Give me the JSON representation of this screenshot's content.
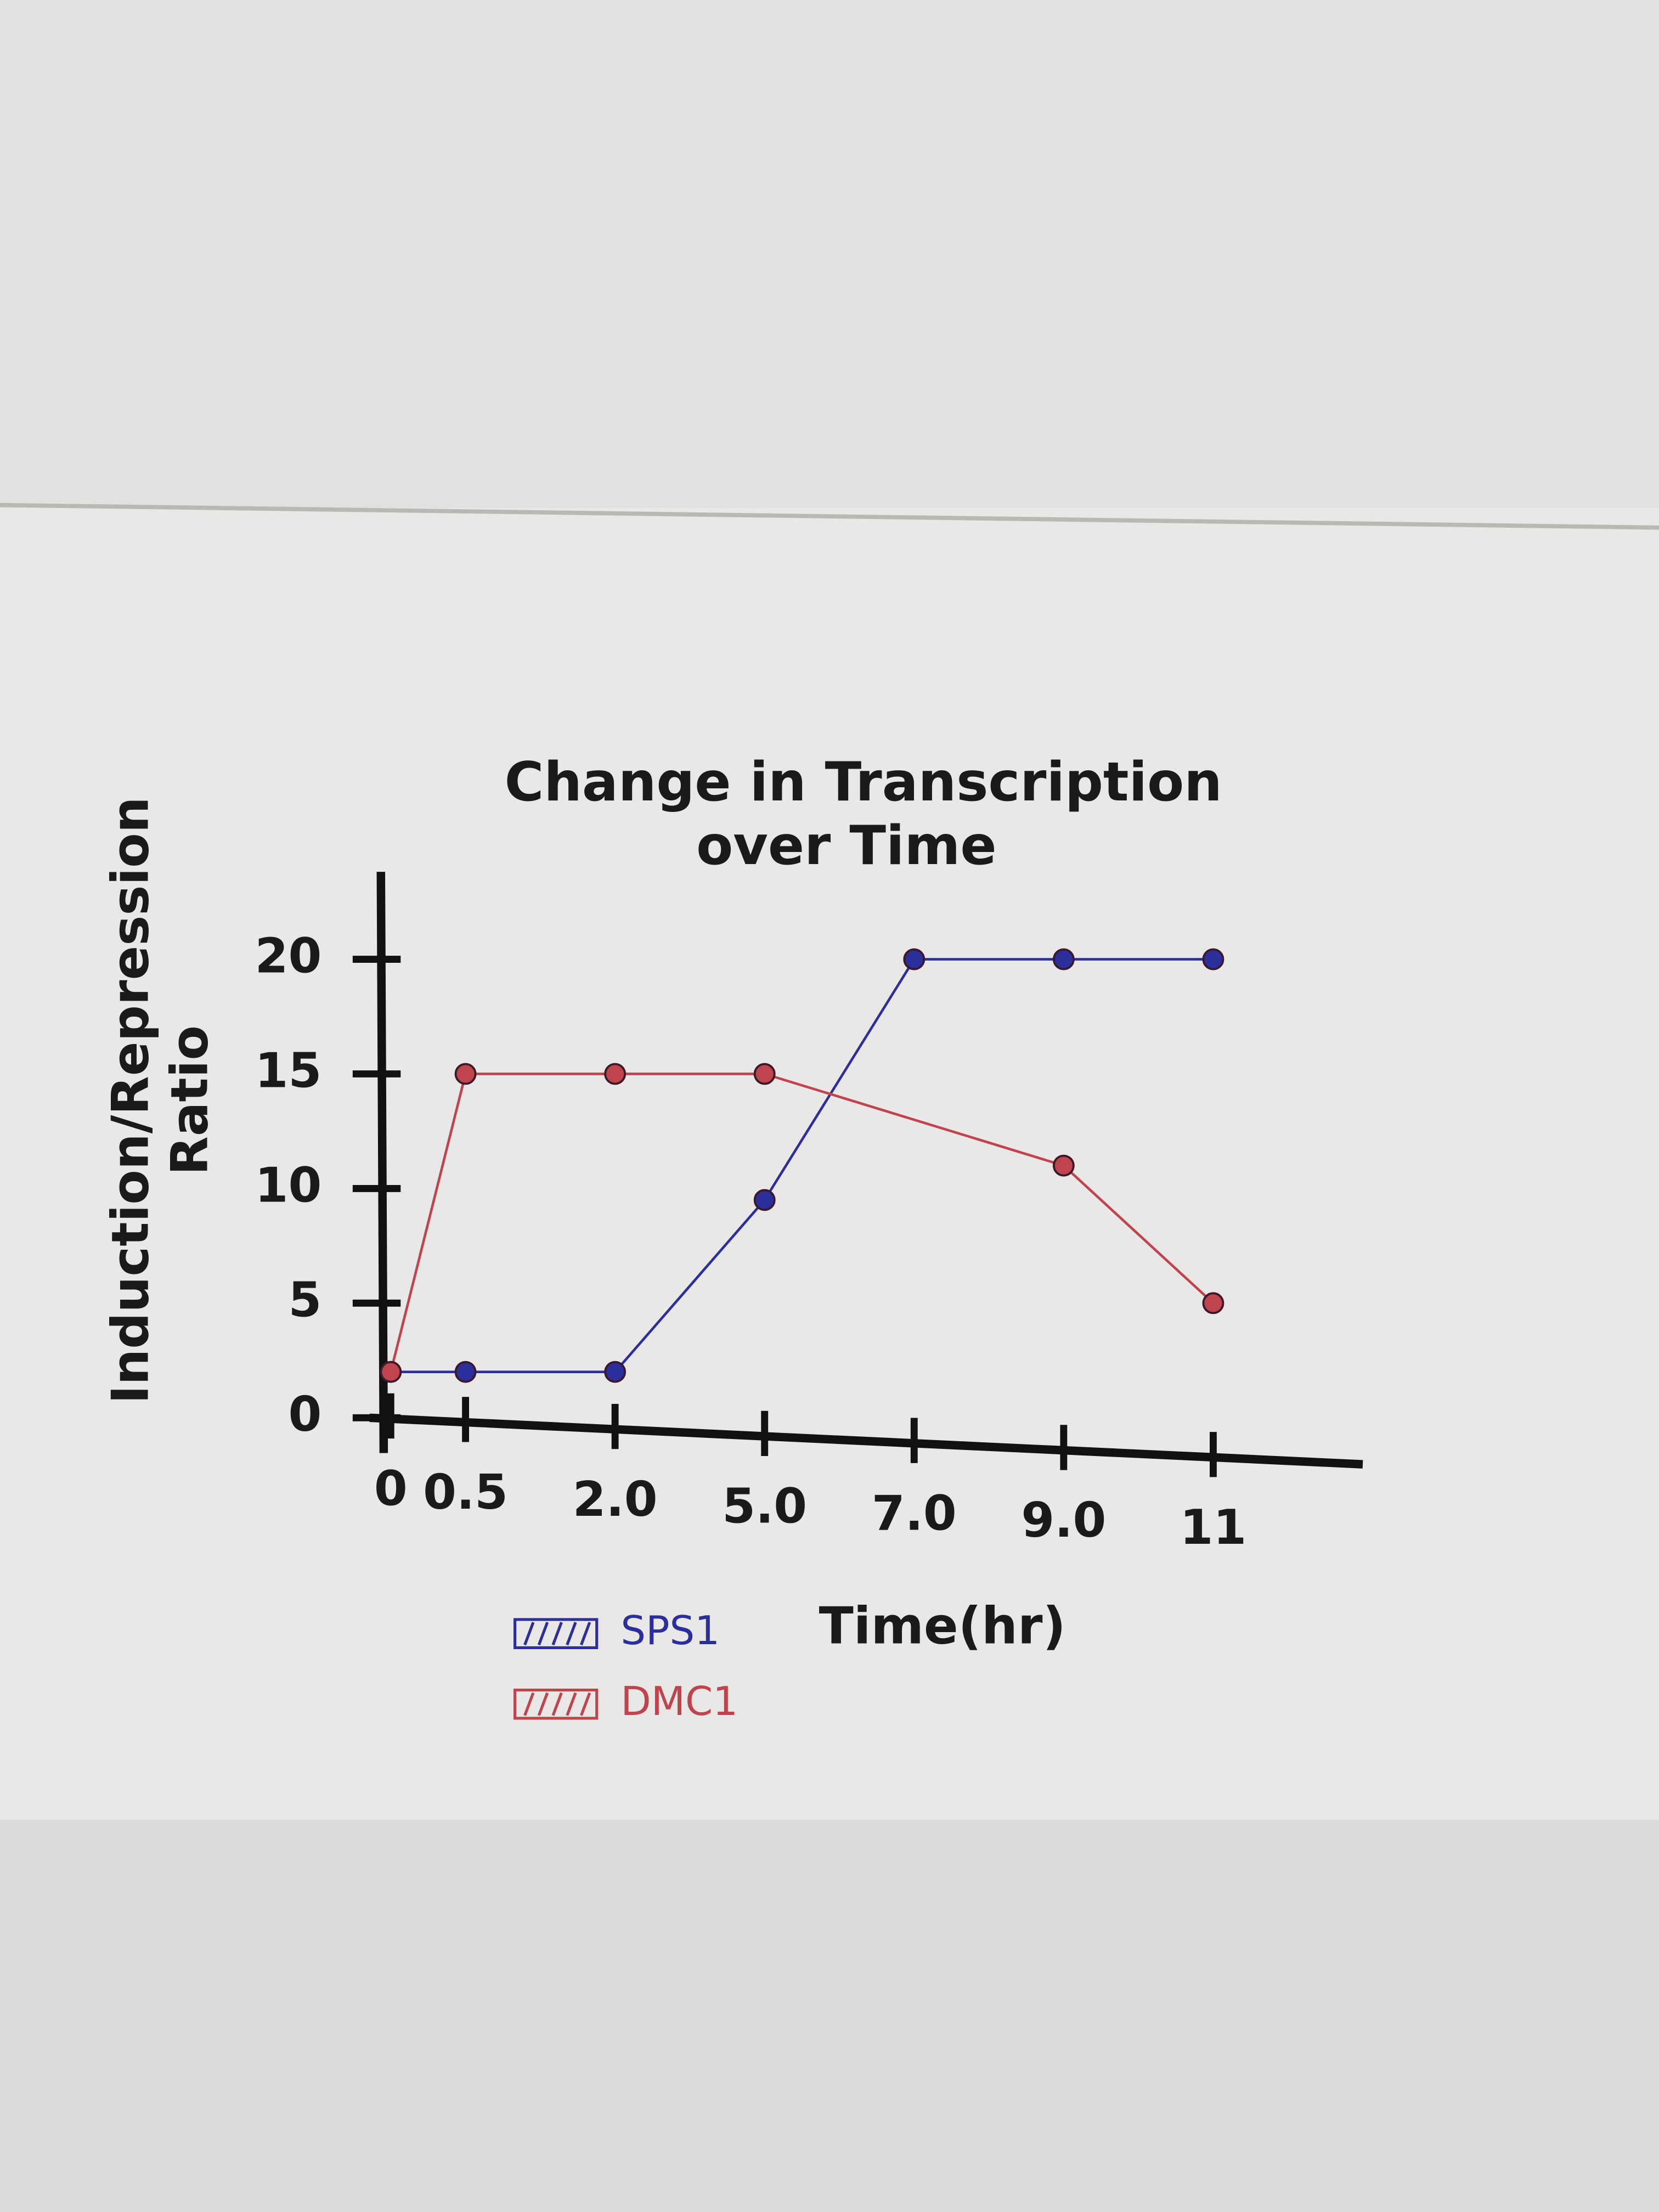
{
  "chart_data": {
    "type": "line",
    "title": [
      "Change in Transcription",
      "over Time"
    ],
    "x_label": "Time(hr)",
    "y_label": [
      "Induction/Repression",
      "Ratio"
    ],
    "xticks": [
      0,
      0.5,
      {
        "value": 2,
        "label": "2.0"
      },
      {
        "value": 5,
        "label": "5.0"
      },
      {
        "value": 7,
        "label": "7.0"
      },
      {
        "value": 9,
        "label": "9.0"
      },
      11
    ],
    "ylim": [
      0,
      24
    ],
    "yticks": [
      0,
      5,
      10,
      15,
      20
    ],
    "series": [
      {
        "name": "SPS1",
        "color": "#2b2f9c",
        "x": [
          0,
          0.5,
          2,
          5,
          7,
          9,
          11
        ],
        "values": [
          2,
          2,
          2,
          9.5,
          20,
          20,
          20
        ]
      },
      {
        "name": "DMC1",
        "color": "#c0444e",
        "x": [
          0,
          0.5,
          2,
          5,
          9,
          11
        ],
        "values": [
          2,
          15,
          15,
          15,
          11,
          5
        ]
      }
    ]
  }
}
